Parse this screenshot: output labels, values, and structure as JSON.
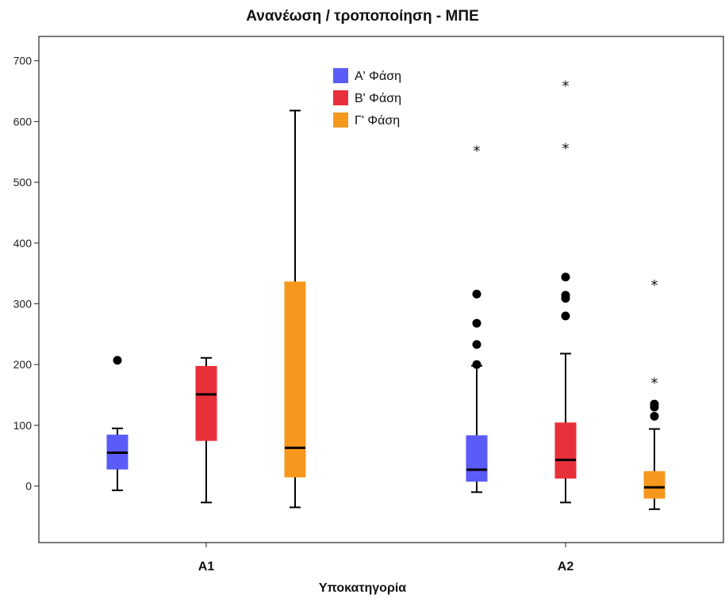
{
  "chart_data": {
    "type": "boxplot",
    "title": "Ανανέωση / τροποποίηση - ΜΠΕ",
    "xlabel": "Υποκατηγορία",
    "ylabel": "",
    "ylim": [
      -93,
      740
    ],
    "yticks": [
      0,
      100,
      200,
      300,
      400,
      500,
      600,
      700
    ],
    "categories": [
      "A1",
      "A2"
    ],
    "legend_position": "top-center",
    "grid": false,
    "series": [
      {
        "name": "Α' Φάση",
        "color": "#5b5cf7",
        "boxes": [
          {
            "category": "A1",
            "min": -7,
            "q1": 28,
            "median": 55,
            "q3": 84,
            "max": 95,
            "outliers": [
              207
            ],
            "extremes": []
          },
          {
            "category": "A2",
            "min": -10,
            "q1": 8,
            "median": 27,
            "q3": 83,
            "max": 198,
            "outliers": [
              200,
              233,
              268,
              316
            ],
            "extremes": [
              553
            ]
          }
        ]
      },
      {
        "name": "Β' Φάση",
        "color": "#e8303a",
        "boxes": [
          {
            "category": "A1",
            "min": -27,
            "q1": 75,
            "median": 151,
            "q3": 197,
            "max": 211,
            "outliers": [],
            "extremes": []
          },
          {
            "category": "A2",
            "min": -27,
            "q1": 13,
            "median": 43,
            "q3": 104,
            "max": 218,
            "outliers": [
              280,
              309,
              314,
              344
            ],
            "extremes": [
              557,
              660
            ]
          }
        ]
      },
      {
        "name": "Γ' Φάση",
        "color": "#f7981e",
        "boxes": [
          {
            "category": "A1",
            "min": -35,
            "q1": 15,
            "median": 63,
            "q3": 336,
            "max": 618,
            "outliers": [],
            "extremes": []
          },
          {
            "category": "A2",
            "min": -38,
            "q1": -20,
            "median": -2,
            "q3": 24,
            "max": 94,
            "outliers": [
              115,
              130,
              135
            ],
            "extremes": [
              171,
              332
            ]
          }
        ]
      }
    ]
  }
}
